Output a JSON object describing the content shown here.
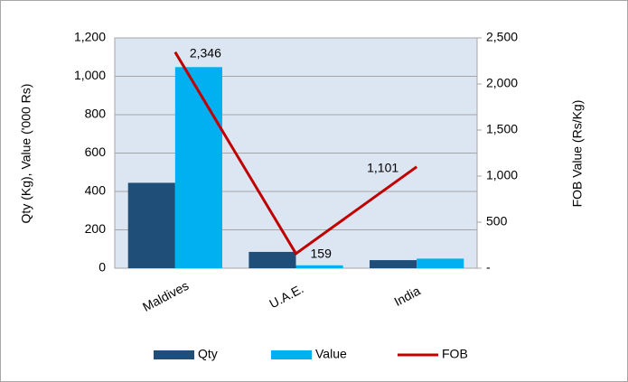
{
  "chart_data": {
    "type": "bar",
    "categories": [
      "Maldives",
      "U.A.E.",
      "India"
    ],
    "series": [
      {
        "name": "Qty",
        "color": "#1f4e79",
        "values": [
          445,
          85,
          42
        ]
      },
      {
        "name": "Value",
        "color": "#00b0f0",
        "values": [
          1048,
          15,
          50
        ]
      },
      {
        "name": "FOB",
        "type": "line",
        "axis": "y2",
        "color": "#c00000",
        "values": [
          2346,
          159,
          1101
        ],
        "value_labels": [
          "2,346",
          "159",
          "1,101"
        ]
      }
    ],
    "y_label": "Qty (Kg), Value ('000 Rs)",
    "y2_label": "FOB Value (Rs/Kg)",
    "ylim": [
      0,
      1200
    ],
    "yticks": [
      0,
      200,
      400,
      600,
      800,
      {
        "value": 1000,
        "label": "1,000"
      },
      {
        "value": 1200,
        "label": "1,200"
      }
    ],
    "y2lim": [
      0,
      2500
    ],
    "y2ticks": [
      {
        "value": 0,
        "label": "-"
      },
      500,
      {
        "value": 1000,
        "label": "1,000"
      },
      {
        "value": 1500,
        "label": "1,500"
      },
      {
        "value": 2000,
        "label": "2,000"
      },
      {
        "value": 2500,
        "label": "2,500"
      }
    ],
    "grid": true,
    "legend": "bottom"
  }
}
